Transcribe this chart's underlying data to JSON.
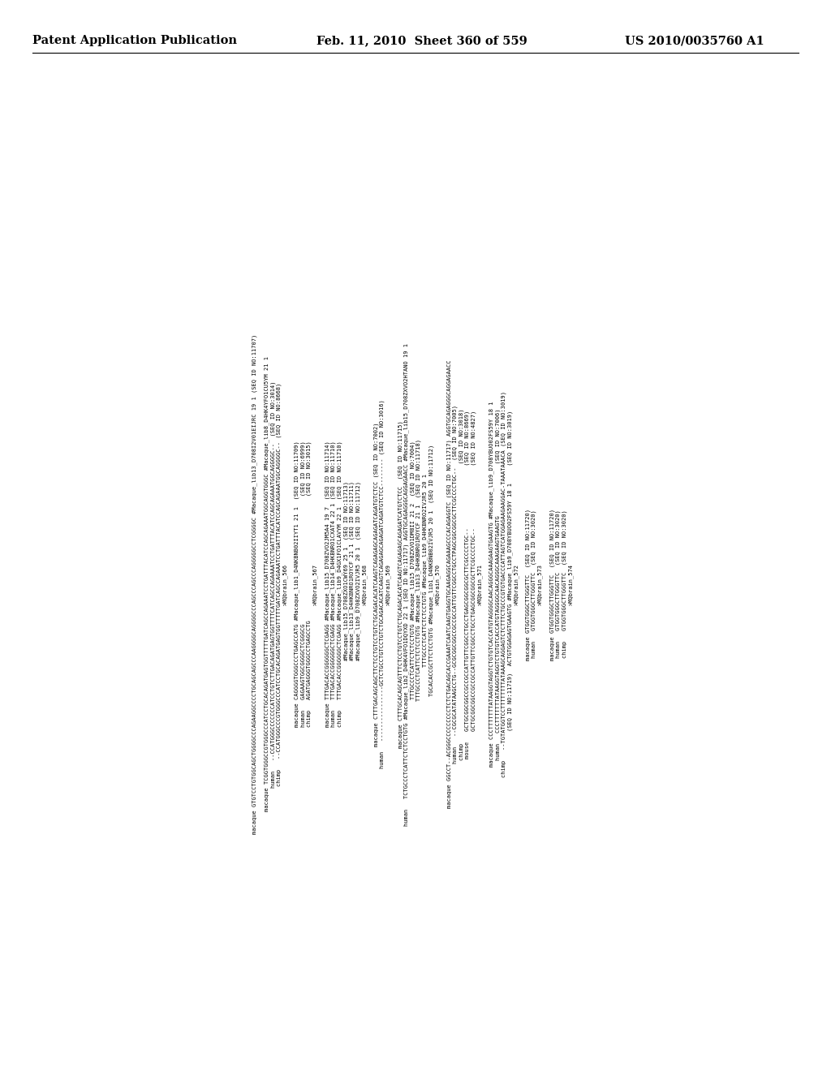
{
  "background_color": "#ffffff",
  "header_left": "Patent Application Publication",
  "header_center": "Feb. 11, 2010  Sheet 360 of 559",
  "header_right": "US 2010/0035760 A1",
  "font_family": "monospace",
  "header_font": "DejaVu Serif",
  "font_size_header": 10.5,
  "font_size_content": 5.0,
  "text_color": "#000000",
  "content_lines": [
    "macaque GTGTCCTGTGGCAGCTGGGGCCCAGAAGGCCCCTGCAGCAGCCCAAGGGGCAGGGGCCCAGCCCAGCCCAGGGGGCCTCGGGGC #Macaque_lib13_D708I2V01EIJRC 19 1 (SEQ ID NO:11707)",
    "                          ",
    "macaque TCGGTGGGCCGTGGGCCCATCCTGCACAGATGAGTGGTTTTTGATCAGCCAGAAATCCTGATTTACATCCAGCAGAAATGGCAGGTGGGC #Macaque_lib8_D4HK4YFO1CU5YM 21 1",
    "human   --CCATGGGCCCCCCCATCCTGTCTTGACAGATGAGTGGTTTTCATCAGCCAGAAAATCCTGATTTACATCCAGCAGAAATGGCAGGGGC--  (SEQ ID NO:3014)",
    "chimp   --CCATGGGCCCGTGGGCCCATCCTGCACAGATGAGTGGTTTTTGATCAGCCAGAAATCCTGATTTACATCCAGCAGAAATGGCAGGGGC-- (SEQ ID NO:8668)",
    ">MQbrain_566",
    "                          ",
    "macaque CAGGGGTGGGCCCTGAGCCATG #Macaque_lib1_D4NKBNB02IIYT1 21 1  (SEQ ID NO:11709)",
    "human   GAGAAGTGGCGGGGCTCGGGCG                                     (SEQ ID NO:6999)",
    "chimp   AGATGAGGGTGGGCCTGAGCCTG                                    (SEQ ID NO:3015)",
    ">MQbrain_567",
    "                          ",
    "macaque TTTGACACCGGGGGGCTCGAGG #Macaque_lib15_D708ZVO2JM5A4 19 7  (SEQ ID NO:11714)",
    "human   TTTGACACCGGGGGGCTCGAGG #Macaque_lib14_D4HKBNRO1CXAT4 22 1 (SEQ ID NO:11710)",
    "chimp   TTTGACACCGGGGGGCTCGAGG #Macaque_lib9_D4GX1FO1CLAVYM 22 1  (SEQ ID NO:11710)",
    "        #Macaque_lib15_D708ZXO1CWY69 25 1  (SEQ ID NO:11713)",
    "        #Macaque_lib13_D4HKBNRO1ROYCF 21 1 (SEQ ID NO:11711)",
    "        #Macaque_lib9_D708ZXVO2IVJR5 20 1  (SEQ ID NO:11712)",
    ">MQbrain_568",
    "                          ",
    "macaque CTTTGACAGCAGCTTCTCCTGTCCTGTCTGCAGACACATCAAGTCAGAGAGCAGAGATCAGATGTCTCC (SEQ ID NO:7002)",
    "human   ----------------GCTCTGCCTGTCCTGTCTGCAGACACATCAAGTCAGAGAGCAGAGATCAGATGTCTCC-------- (SEQ ID NO:3016)",
    ">MQbrain_569",
    "                          ",
    "macaque CTTTGCACAGCAGTTTCTCCTGTCCTGTCTGCAGACACATCAAGTCAGAGAGCAGAGATCATGTCTCC  (SEQ ID NO:11715)",
    "human   TCTGCCCTCATTCTCTCCTGTG #Macaque_lib2_D4HK4VFO1DQYXD 22 1 (SEQ ID NO:11717) AGGTGCAGAGGGCAGGAGAACC #Macaque_lib15_D708ZXVO2HTANO 19 1",
    "        TTTGCCCTCATTCTCTCCTGTG #Macaque_lib15_D708ZXVO1DM8II 21 2  (SEQ ID NO:7004)",
    "        TTTGCCCTCATTCTCTCCTGTG #Macaque_lib13_D4HKBNRO1ROYCF 21 1  (SEQ ID NO:11718)",
    "        TTTGCCCTCATTCTCTCCTGTG #Macaque_lib9_D4HKBNRO2IVJR5 20 1",
    "        TGCACACCGCTTCTCCTGTG #Macaque_lib1_D4NKBNB02IVJR5 20 1  (SEQ ID NO:11712)",
    ">MQbrain_570",
    "                          ",
    "macaque GGCCT--ACGGGCCCCCCCCCTCTCTGACAGCACCGAAATCAATCAAGTGAGGTGCAAGAGGCAGAAAGCCCACAGAGGTC (SEQ ID NO:11717) AGGTGCAGAGGGCAGGAGAACC",
    "human   --CGCGCATATAAGCCTG--GCGCGGCGGCCGCCGCCATTGTTCGGCCTGCCTPAGCGGCGGCGCTTCGCCCCTGC--  (SEQ ID NO:7005)",
    "chimp                                                                                 (SEQ ID NO:3018)",
    "mouse   GCTGCGGCGGCCGCCGCCATTGTTCGGCCTGCCTGAGCGGCGGCGCTTCGCCCCTGC--                  (SEQ ID NO:8669)",
    "        GCTGCGGCGGCCGCCGCCATTGTTCGGCCTGCCTGAGCGGCGGCGCTTCGCCCCTGC--                  (SEQ ID NO:4827)",
    ">MQbrain_571",
    "                          ",
    "macaque CCCTTTTTTTATAAGGTAGGTCTGTGTCACCATGTAGGGGCAACAGGGCAAAGAAGTGAAGTG #Macaque_lib9_D708YBUO02FS59Y 18 1",
    "human   CCCTTTTTTTATAAGGTAGGTCTGTGTCACCATGTAGGGGCAACAGGGCAAAGAAGTGAAGTG               (SEQ ID NO:7006)",
    "chimp   --TGTATGGTCCTTTTTTTTATAAAGCAGGAGTCTCTTTCTGCCCGTGTGACCCATTAGTCATGGAGAAGAAGGAC-TAAATAAACA (SEQ ID NO:3019)",
    "        (SEQ ID NO:11719)  ACTGTGGAGAGTGAAGTG #Macaque_lib9_D708YBUO02FS59Y 18 1     (SEQ ID NO:3019)",
    ">MQbrain_572",
    "                          ",
    "macaque GTGGTGGGCTTGGGTTC  (SEQ ID NO:11720)",
    "human   GTGGTGGGCTTGGGTTC  (SEQ ID NO:3020)",
    ">MQbrain_573",
    "                          ",
    "macaque GTGGTGGGCTTGGGTTC  (SEQ ID NO:11720)",
    "human   GTGGTGGGCTTGGGTTC  (SEQ ID NO:3020)",
    "chimp   GTGGTGGGCTTGGGTTC  (SEQ ID NO:3020)",
    ">MQbrain_574",
    "                          "
  ]
}
